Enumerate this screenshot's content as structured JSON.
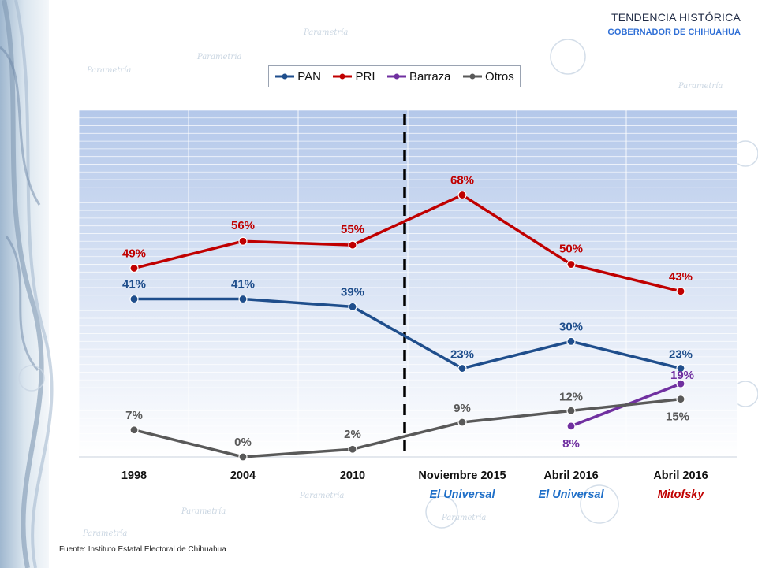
{
  "header": {
    "title": "TENDENCIA HISTÓRICA",
    "subtitle": "GOBERNADOR DE CHIHUAHUA"
  },
  "watermark": "Parametría",
  "source": "Fuente: Instituto Estatal Electoral de Chihuahua",
  "colors": {
    "PAN": "#1f4e8c",
    "PRI": "#c00000",
    "Barraza": "#7030a0",
    "Otros": "#595959",
    "plot_bg_top": "#b4c8ea",
    "plot_bg_bottom": "#ffffff"
  },
  "chart_data": {
    "type": "line",
    "categories": [
      "1998",
      "2004",
      "2010",
      "Noviembre 2015",
      "Abril 2016",
      "Abril 2016"
    ],
    "category_sources": [
      "",
      "",
      "",
      "El Universal",
      "El Universal",
      "Mitofsky"
    ],
    "category_source_colors": [
      "",
      "",
      "",
      "#1f6fc8",
      "#1f6fc8",
      "#c00000"
    ],
    "ylim": [
      0,
      90
    ],
    "grid": true,
    "legend_position": "top",
    "divider_after_index": 2,
    "series": [
      {
        "name": "PAN",
        "values": [
          41,
          41,
          39,
          23,
          30,
          23
        ],
        "labels": [
          "41%",
          "41%",
          "39%",
          "23%",
          "30%",
          "23%"
        ],
        "label_color": "#1f4e8c"
      },
      {
        "name": "PRI",
        "values": [
          49,
          56,
          55,
          68,
          50,
          43
        ],
        "labels": [
          "49%",
          "56%",
          "55%",
          "68%",
          "50%",
          "43%"
        ],
        "label_color": "#c00000"
      },
      {
        "name": "Barraza",
        "values": [
          null,
          null,
          null,
          null,
          8,
          19
        ],
        "labels": [
          "",
          "",
          "",
          "",
          "8%",
          "19%"
        ],
        "label_color": "#7030a0"
      },
      {
        "name": "Otros",
        "values": [
          7,
          0,
          2,
          9,
          12,
          15
        ],
        "labels": [
          "7%",
          "0%",
          "2%",
          "9%",
          "12%",
          "15%"
        ],
        "label_color": "#595959"
      }
    ]
  }
}
